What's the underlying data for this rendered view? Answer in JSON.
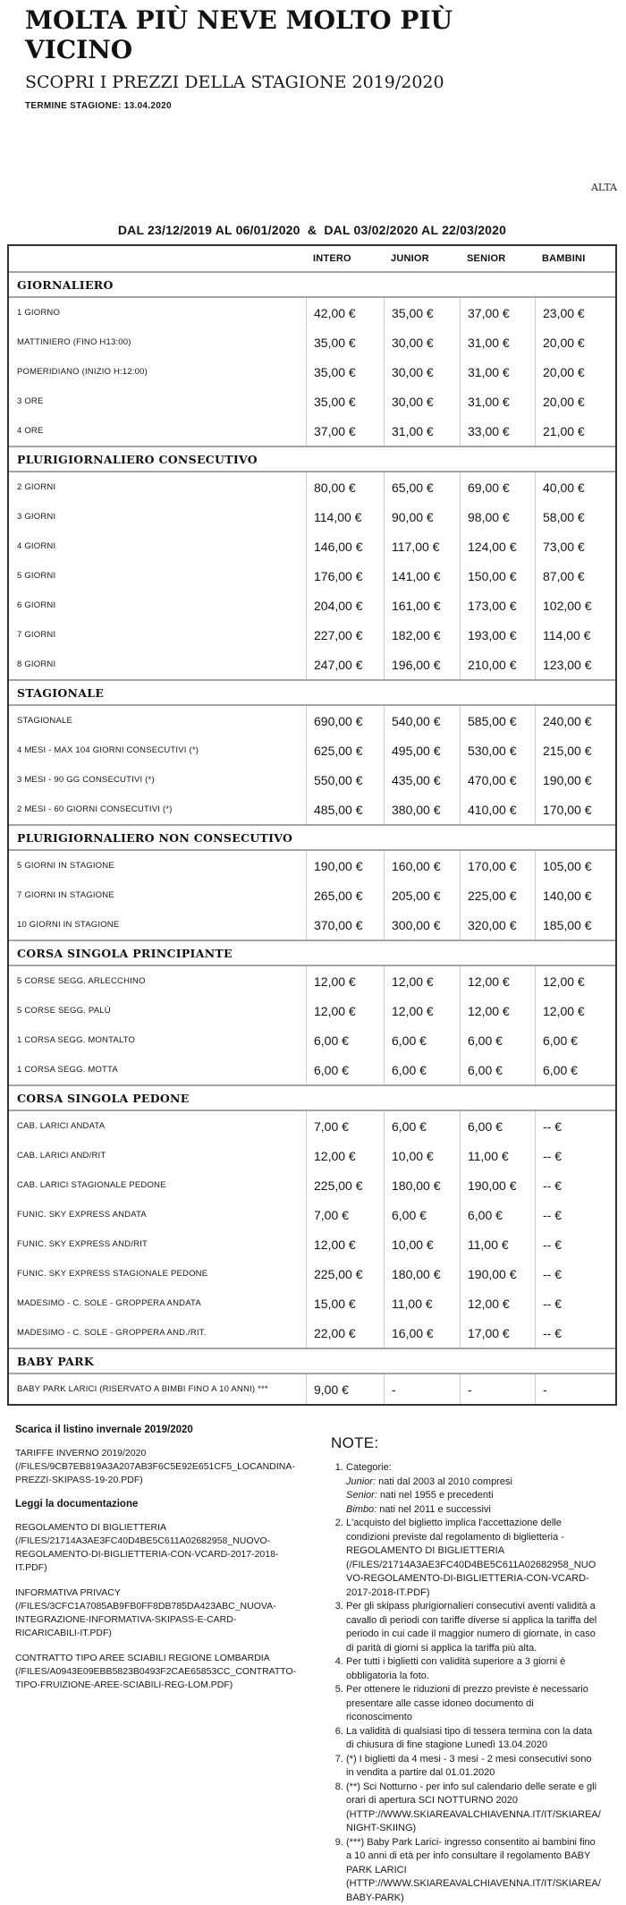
{
  "page": {
    "title": "MOLTA PIÙ NEVE MOLTO PIÙ VICINO",
    "subtitle": "SCOPRI I PREZZI DELLA STAGIONE 2019/2020",
    "season_end": "TERMINE STAGIONE: 13.04.2020",
    "region_label": "ALTA"
  },
  "table": {
    "period": "DAL 23/12/2019 AL 06/01/2020  &  DAL 03/02/2020 AL 22/03/2020",
    "columns": [
      "INTERO",
      "JUNIOR",
      "SENIOR",
      "BAMBINI"
    ],
    "sections": [
      {
        "name": "GIORNALIERO",
        "rows": [
          {
            "label": "1 GIORNO",
            "values": [
              "42,00 €",
              "35,00 €",
              "37,00 €",
              "23,00 €"
            ]
          },
          {
            "label": "MATTINIERO (FINO H13:00)",
            "values": [
              "35,00 €",
              "30,00 €",
              "31,00 €",
              "20,00 €"
            ]
          },
          {
            "label": "POMERIDIANO (INIZIO H:12:00)",
            "values": [
              "35,00 €",
              "30,00 €",
              "31,00 €",
              "20,00 €"
            ]
          },
          {
            "label": "3 ORE",
            "values": [
              "35,00 €",
              "30,00 €",
              "31,00 €",
              "20,00 €"
            ]
          },
          {
            "label": "4 ORE",
            "values": [
              "37,00 €",
              "31,00 €",
              "33,00 €",
              "21,00 €"
            ]
          }
        ]
      },
      {
        "name": "PLURIGIORNALIERO CONSECUTIVO",
        "rows": [
          {
            "label": "2 GIORNI",
            "values": [
              "80,00 €",
              "65,00 €",
              "69,00 €",
              "40,00 €"
            ]
          },
          {
            "label": "3 GIORNI",
            "values": [
              "114,00 €",
              "90,00 €",
              "98,00 €",
              "58,00 €"
            ]
          },
          {
            "label": "4 GIORNI",
            "values": [
              "146,00 €",
              "117,00 €",
              "124,00 €",
              "73,00 €"
            ]
          },
          {
            "label": "5 GIORNI",
            "values": [
              "176,00 €",
              "141,00 €",
              "150,00 €",
              "87,00 €"
            ]
          },
          {
            "label": "6 GIORNI",
            "values": [
              "204,00 €",
              "161,00 €",
              "173,00 €",
              "102,00 €"
            ]
          },
          {
            "label": "7 GIORNI",
            "values": [
              "227,00 €",
              "182,00 €",
              "193,00 €",
              "114,00 €"
            ]
          },
          {
            "label": "8 GIORNI",
            "values": [
              "247,00 €",
              "196,00 €",
              "210,00 €",
              "123,00 €"
            ]
          }
        ]
      },
      {
        "name": "STAGIONALE",
        "rows": [
          {
            "label": "STAGIONALE",
            "values": [
              "690,00 €",
              "540,00 €",
              "585,00 €",
              "240,00 €"
            ]
          },
          {
            "label": "4 MESI - MAX 104 GIORNI CONSECUTIVI (*)",
            "values": [
              "625,00 €",
              "495,00 €",
              "530,00 €",
              "215,00 €"
            ]
          },
          {
            "label": "3 MESI - 90 GG CONSECUTIVI (*)",
            "values": [
              "550,00 €",
              "435,00 €",
              "470,00 €",
              "190,00 €"
            ]
          },
          {
            "label": "2 MESI - 60 GIORNI CONSECUTIVI (*)",
            "values": [
              "485,00 €",
              "380,00 €",
              "410,00 €",
              "170,00 €"
            ]
          }
        ]
      },
      {
        "name": "PLURIGIORNALIERO NON CONSECUTIVO",
        "rows": [
          {
            "label": "5 GIORNI IN STAGIONE",
            "values": [
              "190,00 €",
              "160,00 €",
              "170,00 €",
              "105,00 €"
            ]
          },
          {
            "label": "7 GIORNI IN STAGIONE",
            "values": [
              "265,00 €",
              "205,00 €",
              "225,00 €",
              "140,00 €"
            ]
          },
          {
            "label": "10 GIORNI IN STAGIONE",
            "values": [
              "370,00 €",
              "300,00 €",
              "320,00 €",
              "185,00 €"
            ]
          }
        ]
      },
      {
        "name": "CORSA SINGOLA PRINCIPIANTE",
        "rows": [
          {
            "label": "5 CORSE SEGG. ARLECCHINO",
            "values": [
              "12,00 €",
              "12,00 €",
              "12,00 €",
              "12,00 €"
            ]
          },
          {
            "label": "5 CORSE SEGG. PALÙ",
            "values": [
              "12,00 €",
              "12,00 €",
              "12,00 €",
              "12,00 €"
            ]
          },
          {
            "label": "1 CORSA SEGG. MONTALTO",
            "values": [
              "6,00 €",
              "6,00 €",
              "6,00 €",
              "6,00 €"
            ]
          },
          {
            "label": "1 CORSA SEGG. MOTTA",
            "values": [
              "6,00 €",
              "6,00 €",
              "6,00 €",
              "6,00 €"
            ]
          }
        ]
      },
      {
        "name": "CORSA SINGOLA PEDONE",
        "rows": [
          {
            "label": "CAB. LARICI ANDATA",
            "values": [
              "7,00 €",
              "6,00 €",
              "6,00 €",
              "-- €"
            ]
          },
          {
            "label": "CAB. LARICI AND/RIT",
            "values": [
              "12,00 €",
              "10,00 €",
              "11,00 €",
              "-- €"
            ]
          },
          {
            "label": "CAB. LARICI STAGIONALE PEDONE",
            "values": [
              "225,00 €",
              "180,00 €",
              "190,00 €",
              "-- €"
            ]
          },
          {
            "label": "FUNIC. SKY EXPRESS ANDATA",
            "values": [
              "7,00 €",
              "6,00 €",
              "6,00 €",
              "-- €"
            ]
          },
          {
            "label": "FUNIC. SKY EXPRESS AND/RIT",
            "values": [
              "12,00 €",
              "10,00 €",
              "11,00 €",
              "-- €"
            ]
          },
          {
            "label": "FUNIC. SKY EXPRESS STAGIONALE PEDONE",
            "values": [
              "225,00 €",
              "180,00 €",
              "190,00 €",
              "-- €"
            ]
          },
          {
            "label": "MADESIMO - C. SOLE - GROPPERA ANDATA",
            "values": [
              "15,00 €",
              "11,00 €",
              "12,00 €",
              "-- €"
            ]
          },
          {
            "label": "MADESIMO - C. SOLE - GROPPERA AND./RIT.",
            "values": [
              "22,00 €",
              "16,00 €",
              "17,00 €",
              "-- €"
            ]
          }
        ]
      },
      {
        "name": "BABY PARK",
        "rows": [
          {
            "label": "BABY PARK LARICI (RISERVATO A BIMBI FINO A 10 ANNI) ***",
            "values": [
              "9,00 €",
              "-",
              "-",
              "-"
            ]
          }
        ]
      }
    ]
  },
  "downloads": {
    "heading1": "Scarica il listino invernale 2019/2020",
    "links1": [
      {
        "text": "TARIFFE INVERNO 2019/2020 (/FILES/9CB7EB819A3A207AB3F6C5E92E651CF5_LOCANDINA-PREZZI-SKIPASS-19-20.PDF)"
      }
    ],
    "heading2": "Leggi la documentazione",
    "links2": [
      {
        "text": "REGOLAMENTO DI BIGLIETTERIA (/FILES/21714A3AE3FC40D4BE5C611A02682958_NUOVO-REGOLAMENTO-DI-BIGLIETTERIA-CON-VCARD-2017-2018-IT.PDF)"
      },
      {
        "text": "INFORMATIVA PRIVACY (/FILES/3CFC1A7085AB9FB0FF8DB785DA423ABC_NUOVA-INTEGRAZIONE-INFORMATIVA-SKIPASS-E-CARD-RICARICABILI-IT.PDF)"
      },
      {
        "text": "CONTRATTO TIPO AREE SCIABILI REGIONE LOMBARDIA (/FILES/A0943E09EBB5823B0493F2CAE65853CC_CONTRATTO-TIPO-FRUIZIONE-AREE-SCIABILI-REG-LOM.PDF)"
      }
    ]
  },
  "notes": {
    "heading": "NOTE:",
    "items": [
      {
        "text": "Categorie:",
        "sublines": [
          {
            "em": "Junior:",
            "rest": " nati dal 2003 al 2010 compresi"
          },
          {
            "em": "Senior:",
            "rest": " nati nel 1955 e precedenti"
          },
          {
            "em": "Bimbo:",
            "rest": " nati nel 2011 e successivi"
          }
        ]
      },
      {
        "text": "L'acquisto del biglietto implica l'accettazione delle condizioni previste dal regolamento di biglietteria - REGOLAMENTO DI BIGLIETTERIA (/FILES/21714A3AE3FC40D4BE5C611A02682958_NUOVO-REGOLAMENTO-DI-BIGLIETTERIA-CON-VCARD-2017-2018-IT.PDF)"
      },
      {
        "text": "Per gli skipass plurigiornalieri consecutivi aventi validità a cavallo di periodi con tariffe diverse si applica la tariffa del periodo in cui cade il maggior numero di giornate, in caso di parità di giorni si applica la tariffa più alta."
      },
      {
        "text": "Per tutti i biglietti con validità superiore a 3 giorni è obbligatoria la foto."
      },
      {
        "text": "Per ottenere le riduzioni di prezzo previste è necessario presentare alle casse idoneo documento di riconoscimento"
      },
      {
        "text": "La validità di qualsiasi tipo di tessera termina con la data di chiusura di fine stagione Lunedì 13.04.2020"
      },
      {
        "text": "(*) I biglietti da 4 mesi - 3 mesi - 2 mesi consecutivi sono in vendita a partire dal 01.01.2020"
      },
      {
        "text": "(**) Sci Notturno - per info sul calendario delle serate e gli orari di apertura SCI NOTTURNO 2020 (HTTP://WWW.SKIAREAVALCHIAVENNA.IT/IT/SKIAREA/NIGHT-SKIING)"
      },
      {
        "text": "(***) Baby Park Larici- ingresso consentito ai bambini fino a 10 anni di età per info consultare il regolamento BABY PARK LARICI (HTTP://WWW.SKIAREAVALCHIAVENNA.IT/IT/SKIAREA/BABY-PARK)"
      }
    ]
  }
}
